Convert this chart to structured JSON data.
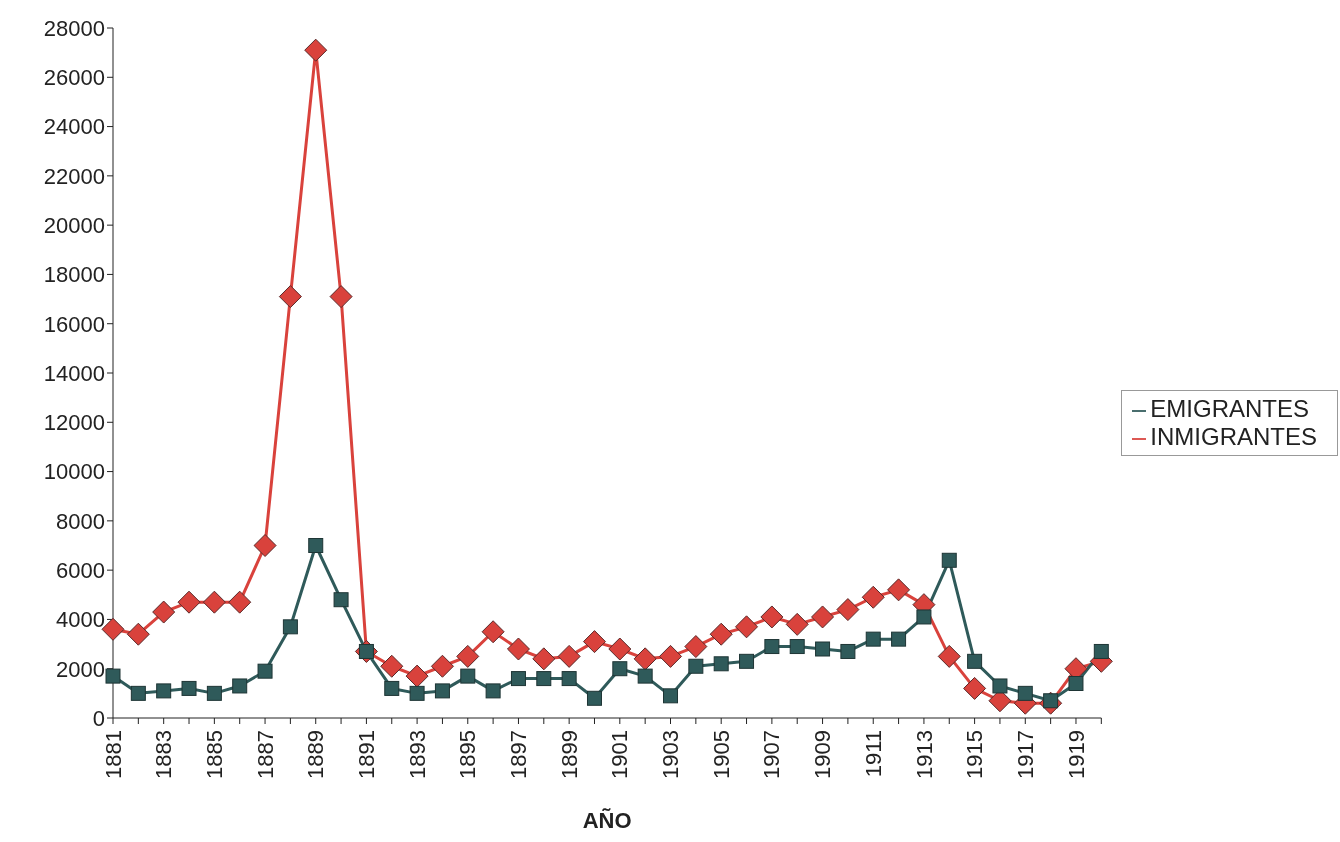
{
  "chart_data": {
    "type": "line",
    "xlabel": "AÑO",
    "categories": [
      "1881",
      null,
      "1883",
      null,
      "1885",
      null,
      "1887",
      null,
      "1889",
      null,
      "1891",
      null,
      "1893",
      null,
      "1895",
      null,
      "1897",
      null,
      "1899",
      null,
      "1901",
      null,
      "1903",
      null,
      "1905",
      null,
      "1907",
      null,
      "1909",
      null,
      "1911",
      null,
      "1913",
      null,
      "1915",
      null,
      "1917",
      null,
      "1919",
      null
    ],
    "series": [
      {
        "name": "INMIGRANTES",
        "color": "#d9423c",
        "marker": "diamond",
        "values": [
          3600,
          3400,
          4300,
          4700,
          4700,
          4700,
          7000,
          17100,
          27100,
          17100,
          2700,
          2100,
          1700,
          2100,
          2500,
          3500,
          2800,
          2400,
          2500,
          3100,
          2800,
          2400,
          2500,
          2900,
          3400,
          3700,
          4100,
          3800,
          4100,
          4400,
          4900,
          5200,
          4600,
          2500,
          1200,
          700,
          600,
          600,
          2000,
          2300
        ]
      },
      {
        "name": "EMIGRANTES",
        "color": "#2f5a5a",
        "marker": "square",
        "values": [
          1700,
          1000,
          1100,
          1200,
          1000,
          1300,
          1900,
          3700,
          7000,
          4800,
          2700,
          1200,
          1000,
          1100,
          1700,
          1100,
          1600,
          1600,
          1600,
          800,
          2000,
          1700,
          900,
          2100,
          2200,
          2300,
          2900,
          2900,
          2800,
          2700,
          3200,
          3200,
          4100,
          6400,
          2300,
          1300,
          1000,
          700,
          1400,
          2700
        ]
      }
    ],
    "ylim": [
      0,
      28000
    ],
    "yticks": [
      0,
      2000,
      4000,
      6000,
      8000,
      10000,
      12000,
      14000,
      16000,
      18000,
      20000,
      22000,
      24000,
      26000,
      28000
    ],
    "grid": false,
    "legend": "right",
    "line_style": "solid"
  }
}
